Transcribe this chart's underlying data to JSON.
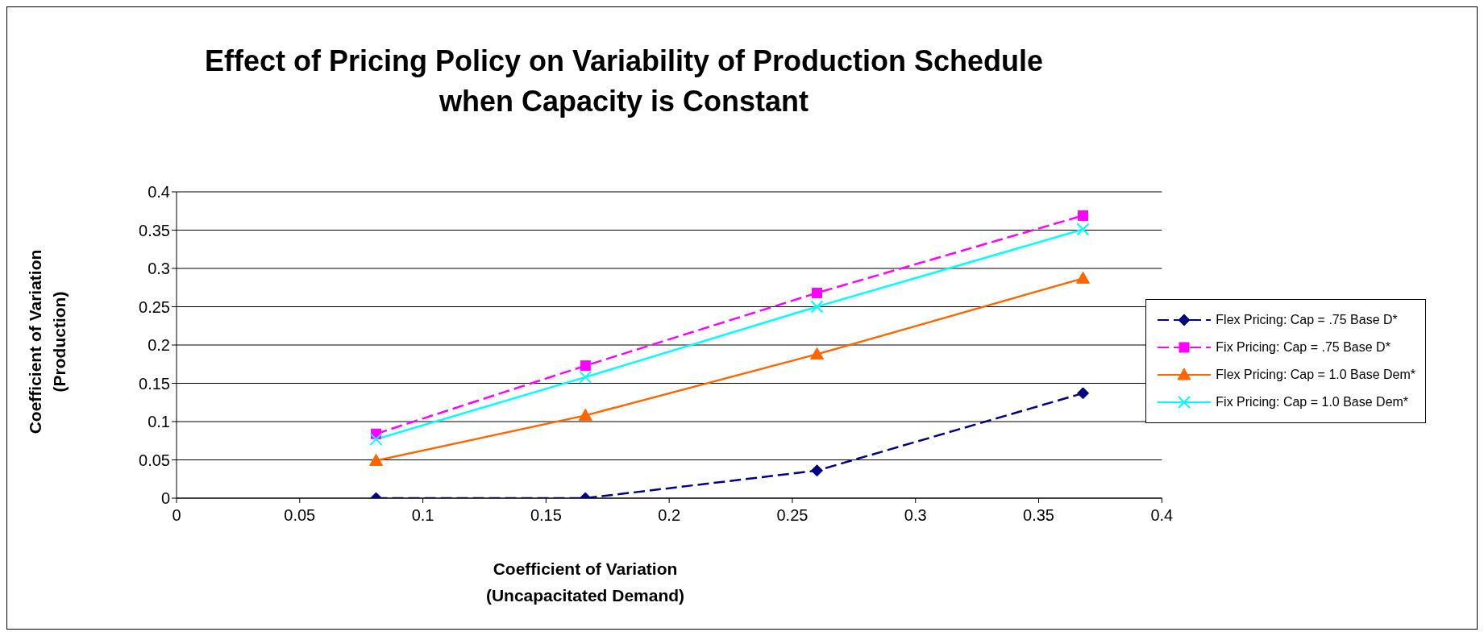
{
  "chart_data": {
    "type": "line",
    "title": "Effect of Pricing Policy on Variability of Production Schedule\nwhen Capacity is Constant",
    "xlabel": "Coefficient of Variation\n(Uncapacitated Demand)",
    "ylabel": "Coefficient of Variation\n(Production)",
    "x": [
      0.081,
      0.166,
      0.26,
      0.368
    ],
    "series": [
      {
        "name": "Flex Pricing: Cap = .75 Base D*",
        "color": "#000080",
        "values": [
          0,
          0,
          0.036,
          0.137
        ],
        "marker": "diamond",
        "line_style": "dashed"
      },
      {
        "name": "Fix Pricing: Cap = .75 Base D*",
        "color": "#ff00ff",
        "values": [
          0.084,
          0.173,
          0.268,
          0.369
        ],
        "marker": "square",
        "line_style": "dashed"
      },
      {
        "name": "Flex Pricing: Cap = 1.0 Base Dem*",
        "color": "#ff6600",
        "values": [
          0.049,
          0.108,
          0.188,
          0.287
        ],
        "marker": "triangle",
        "line_style": "solid"
      },
      {
        "name": "Fix Pricing: Cap = 1.0 Base Dem*",
        "color": "#00ffff",
        "values": [
          0.077,
          0.158,
          0.25,
          0.351
        ],
        "marker": "cross",
        "line_style": "solid"
      }
    ],
    "xlim": [
      0,
      0.4
    ],
    "xticks": [
      0,
      0.05,
      0.1,
      0.15,
      0.2,
      0.25,
      0.3,
      0.35,
      0.4
    ],
    "ylim": [
      0,
      0.4
    ],
    "yticks": [
      0,
      0.05,
      0.1,
      0.15,
      0.2,
      0.25,
      0.3,
      0.35,
      0.4
    ],
    "grid": "y",
    "legend": "right"
  }
}
